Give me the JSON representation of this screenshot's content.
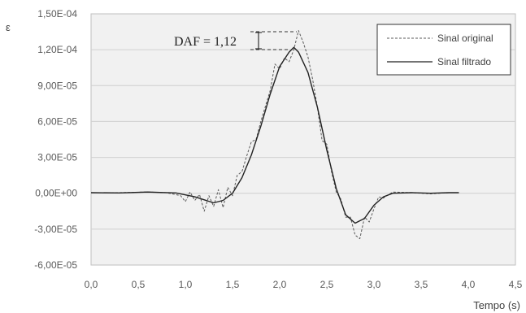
{
  "chart_data": {
    "type": "line",
    "xlabel": "Tempo (s)",
    "ylabel": "ε",
    "xlim": [
      0,
      4.5
    ],
    "ylim": [
      -6e-05,
      0.00015
    ],
    "x_ticks": [
      "0,0",
      "0,5",
      "1,0",
      "1,5",
      "2,0",
      "2,5",
      "3,0",
      "3,5",
      "4,0",
      "4,5"
    ],
    "y_ticks": [
      "1,50E-04",
      "1,20E-04",
      "9,00E-05",
      "6,00E-05",
      "3,00E-05",
      "0,00E+00",
      "-3,00E-05",
      "-6,00E-05"
    ],
    "grid": "horizontal",
    "legend_position": "top-right",
    "annotation": "DAF = 1,12",
    "series": [
      {
        "name": "Sinal original",
        "style": "dashed",
        "color": "#595959",
        "points": [
          [
            0.0,
            5e-07
          ],
          [
            0.3,
            5e-07
          ],
          [
            0.6,
            1e-06
          ],
          [
            0.8,
            5e-07
          ],
          [
            0.95,
            -2e-06
          ],
          [
            1.0,
            -7e-06
          ],
          [
            1.05,
            1e-06
          ],
          [
            1.1,
            -6e-06
          ],
          [
            1.15,
            -1e-06
          ],
          [
            1.2,
            -1.5e-05
          ],
          [
            1.25,
            -2e-06
          ],
          [
            1.3,
            -1.1e-05
          ],
          [
            1.35,
            3e-06
          ],
          [
            1.4,
            -1.2e-05
          ],
          [
            1.45,
            5e-06
          ],
          [
            1.5,
            -2e-06
          ],
          [
            1.55,
            1.5e-05
          ],
          [
            1.6,
            1.8e-05
          ],
          [
            1.65,
            3.1e-05
          ],
          [
            1.7,
            4.3e-05
          ],
          [
            1.75,
            4.5e-05
          ],
          [
            1.8,
            6e-05
          ],
          [
            1.85,
            7.3e-05
          ],
          [
            1.9,
            8.6e-05
          ],
          [
            1.95,
            0.000108
          ],
          [
            2.0,
            0.000104
          ],
          [
            2.05,
            0.000113
          ],
          [
            2.1,
            0.00011
          ],
          [
            2.15,
            0.00012
          ],
          [
            2.2,
            0.000136
          ],
          [
            2.25,
            0.000126
          ],
          [
            2.3,
            0.000114
          ],
          [
            2.35,
            9.5e-05
          ],
          [
            2.4,
            7.2e-05
          ],
          [
            2.45,
            4.4e-05
          ],
          [
            2.5,
            4.1e-05
          ],
          [
            2.55,
            1.8e-05
          ],
          [
            2.6,
            1e-06
          ],
          [
            2.65,
            -5e-06
          ],
          [
            2.7,
            -2e-05
          ],
          [
            2.75,
            -2e-05
          ],
          [
            2.8,
            -3.5e-05
          ],
          [
            2.85,
            -3.8e-05
          ],
          [
            2.9,
            -2e-05
          ],
          [
            2.95,
            -2.4e-05
          ],
          [
            3.0,
            -1.3e-05
          ],
          [
            3.05,
            -3e-06
          ],
          [
            3.1,
            -4e-06
          ],
          [
            3.2,
            1e-06
          ],
          [
            3.4,
            5e-07
          ],
          [
            3.6,
            -5e-07
          ],
          [
            3.8,
            5e-07
          ],
          [
            3.9,
            5e-07
          ]
        ]
      },
      {
        "name": "Sinal filtrado",
        "style": "solid",
        "color": "#222222",
        "points": [
          [
            0.0,
            5e-07
          ],
          [
            0.3,
            3e-07
          ],
          [
            0.6,
            1e-06
          ],
          [
            0.9,
            3e-07
          ],
          [
            1.1,
            -3e-06
          ],
          [
            1.3,
            -8e-06
          ],
          [
            1.4,
            -6e-06
          ],
          [
            1.5,
            0.0
          ],
          [
            1.6,
            1.3e-05
          ],
          [
            1.7,
            3.2e-05
          ],
          [
            1.8,
            5.6e-05
          ],
          [
            1.9,
            8.3e-05
          ],
          [
            2.0,
            0.000106
          ],
          [
            2.1,
            0.000118
          ],
          [
            2.15,
            0.000122
          ],
          [
            2.2,
            0.000118
          ],
          [
            2.3,
            0.000101
          ],
          [
            2.4,
            7.2e-05
          ],
          [
            2.5,
            3.6e-05
          ],
          [
            2.6,
            4e-06
          ],
          [
            2.7,
            -1.8e-05
          ],
          [
            2.8,
            -2.5e-05
          ],
          [
            2.9,
            -2.1e-05
          ],
          [
            3.0,
            -1e-05
          ],
          [
            3.1,
            -3e-06
          ],
          [
            3.2,
            0.0
          ],
          [
            3.4,
            5e-07
          ],
          [
            3.6,
            0.0
          ],
          [
            3.8,
            5e-07
          ],
          [
            3.9,
            5e-07
          ]
        ]
      }
    ]
  }
}
